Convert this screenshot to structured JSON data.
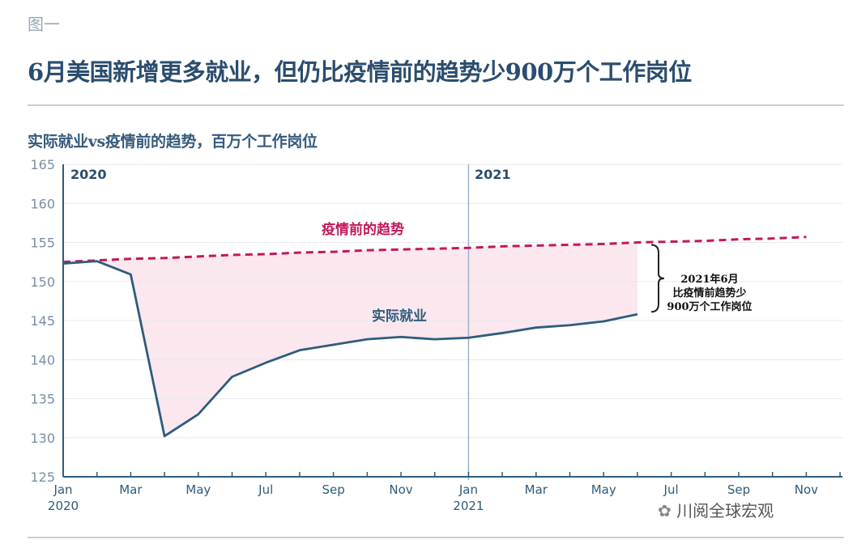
{
  "figure_label": "图一",
  "title": "6月美国新增更多就业，但仍比疫情前的趋势少900万个工作岗位",
  "subtitle": "实际就业vs疫情前的趋势，百万个工作岗位",
  "watermark": "川阅全球宏观",
  "colors": {
    "actual": "#2e5c7c",
    "trend": "#c2185b",
    "gap_fill": "#fbe7ee",
    "axis": "#2e5c7c",
    "divider": "#9fb2c6"
  },
  "chart_data": {
    "type": "line",
    "x_ticks": [
      "Jan",
      "Mar",
      "May",
      "Jul",
      "Sep",
      "Nov",
      "Jan",
      "Mar",
      "May",
      "Jul",
      "Sep",
      "Nov"
    ],
    "year_labels": [
      "2020",
      "2021"
    ],
    "year_panel_labels": [
      "2020",
      "2021"
    ],
    "ylim": [
      125,
      165
    ],
    "y_ticks": [
      125,
      130,
      135,
      140,
      145,
      150,
      155,
      160,
      165
    ],
    "series": [
      {
        "name": "实际就业",
        "values": [
          152.3,
          152.6,
          150.9,
          130.2,
          133.0,
          137.8,
          139.6,
          141.2,
          141.9,
          142.6,
          142.9,
          142.6,
          142.8,
          143.4,
          144.1,
          144.4,
          144.9,
          145.8
        ]
      },
      {
        "name": "疫情前的趋势",
        "values": [
          152.5,
          152.7,
          152.9,
          153.0,
          153.2,
          153.4,
          153.5,
          153.7,
          153.8,
          154.0,
          154.1,
          154.2,
          154.3,
          154.5,
          154.6,
          154.7,
          154.8,
          155.0,
          155.1,
          155.2,
          155.4,
          155.5,
          155.7
        ]
      }
    ],
    "annotation": [
      "2021年6月",
      "比疫情前趋势少",
      "900万个工作岗位"
    ]
  }
}
